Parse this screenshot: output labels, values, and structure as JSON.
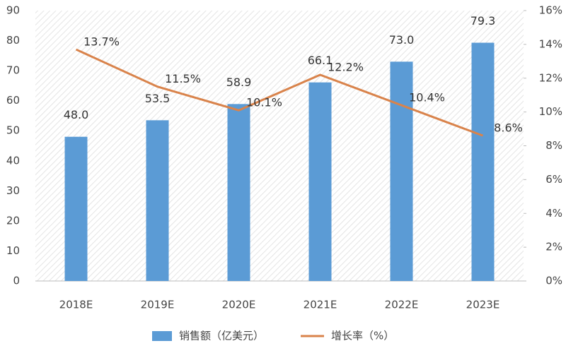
{
  "chart_data": {
    "type": "bar",
    "categories": [
      "2018E",
      "2019E",
      "2020E",
      "2021E",
      "2022E",
      "2023E"
    ],
    "series": [
      {
        "name": "销售额（亿美元）",
        "type": "bar",
        "color": "#5b9bd5",
        "values": [
          48.0,
          53.5,
          58.9,
          66.1,
          73.0,
          79.3
        ],
        "value_labels": [
          "48.0",
          "53.5",
          "58.9",
          "66.1",
          "73.0",
          "79.3"
        ]
      },
      {
        "name": "增长率（%）",
        "type": "line",
        "axis": "y2",
        "color": "#d9834b",
        "values": [
          13.7,
          11.5,
          10.1,
          12.2,
          10.4,
          8.6
        ],
        "value_labels": [
          "13.7%",
          "11.5%",
          "10.1%",
          "12.2%",
          "10.4%",
          "8.6%"
        ]
      }
    ],
    "ylim": [
      0,
      90
    ],
    "yticks": [
      0,
      10,
      20,
      30,
      40,
      50,
      60,
      70,
      80,
      90
    ],
    "y2lim": [
      0,
      16
    ],
    "y2ticks": [
      {
        "value": 0,
        "label": "0%"
      },
      {
        "value": 2,
        "label": "2%"
      },
      {
        "value": 4,
        "label": "4%"
      },
      {
        "value": 6,
        "label": "6%"
      },
      {
        "value": 8,
        "label": "8%"
      },
      {
        "value": 10,
        "label": "10%"
      },
      {
        "value": 12,
        "label": "12%"
      },
      {
        "value": 14,
        "label": "14%"
      },
      {
        "value": 16,
        "label": "16%"
      }
    ],
    "grid": false
  }
}
